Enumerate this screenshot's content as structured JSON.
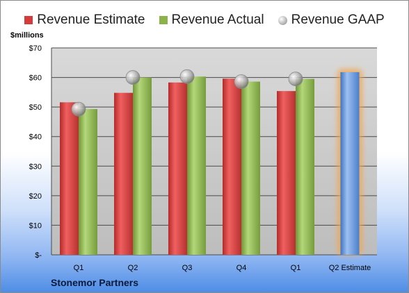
{
  "legend": {
    "estimate": "Revenue Estimate",
    "actual": "Revenue Actual",
    "gaap": "Revenue GAAP"
  },
  "unit_label": "$millions",
  "footer": "Stonemor Partners",
  "chart_data": {
    "type": "bar",
    "categories": [
      "Q1",
      "Q2",
      "Q3",
      "Q4",
      "Q1",
      "Q2 Estimate"
    ],
    "series": [
      {
        "name": "Revenue Estimate",
        "values": [
          51.6,
          54.8,
          58.3,
          59.6,
          55.4,
          null
        ],
        "color": "#d63a3a"
      },
      {
        "name": "Revenue Actual",
        "values": [
          49.3,
          60.0,
          60.3,
          58.6,
          59.5,
          null
        ],
        "color": "#8cb24a"
      },
      {
        "name": "Revenue GAAP",
        "values": [
          49.3,
          60.0,
          60.3,
          58.6,
          59.5,
          null
        ],
        "color": "#a9a9a9"
      }
    ],
    "estimate_bar": {
      "category": "Q2 Estimate",
      "value": 61.8,
      "color": "#5b8fd6",
      "glow": "#f5a54a"
    },
    "ylim": [
      0,
      70
    ],
    "yticks": [
      0,
      10,
      20,
      30,
      40,
      50,
      60,
      70
    ],
    "ytick_labels": [
      "$-",
      "$10",
      "$20",
      "$30",
      "$40",
      "$50",
      "$60",
      "$70"
    ],
    "grid": true,
    "legend_position": "top"
  }
}
